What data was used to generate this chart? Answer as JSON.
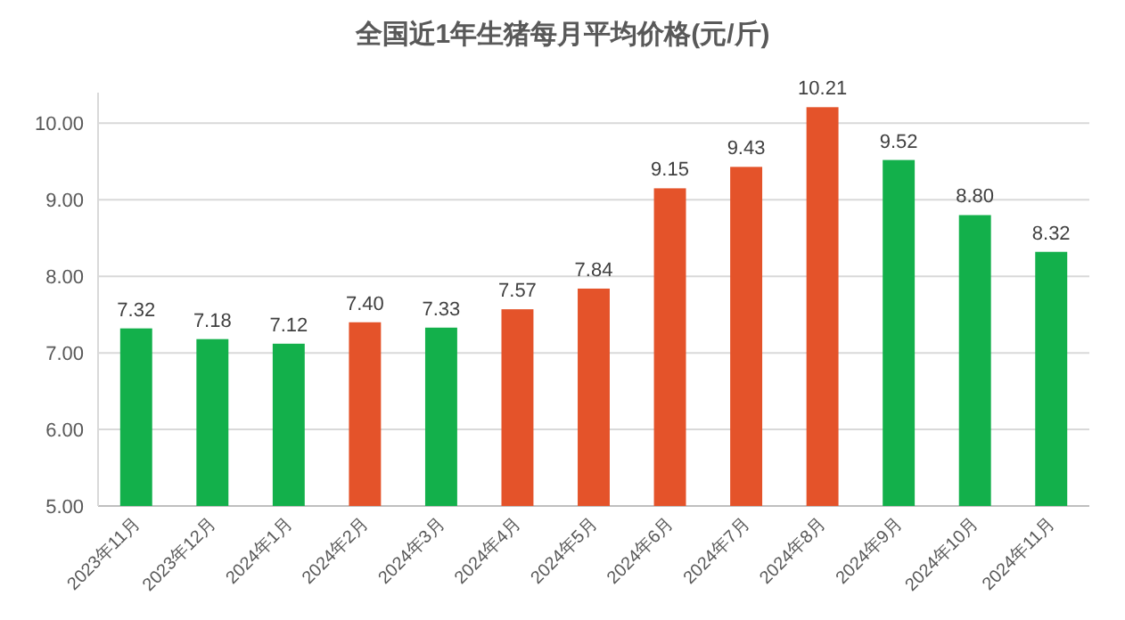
{
  "chart_data": {
    "type": "bar",
    "title": "全国近1年生猪每月平均价格(元/斤)",
    "categories": [
      "2023年11月",
      "2023年12月",
      "2024年1月",
      "2024年2月",
      "2024年3月",
      "2024年4月",
      "2024年5月",
      "2024年6月",
      "2024年7月",
      "2024年8月",
      "2024年9月",
      "2024年10月",
      "2024年11月"
    ],
    "values": [
      7.32,
      7.18,
      7.12,
      7.4,
      7.33,
      7.57,
      7.84,
      9.15,
      9.43,
      10.21,
      9.52,
      8.8,
      8.32
    ],
    "colors": [
      "#13b04b",
      "#13b04b",
      "#13b04b",
      "#e4532a",
      "#13b04b",
      "#e4532a",
      "#e4532a",
      "#e4532a",
      "#e4532a",
      "#e4532a",
      "#13b04b",
      "#13b04b",
      "#13b04b"
    ],
    "value_labels": [
      "7.32",
      "7.18",
      "7.12",
      "7.40",
      "7.33",
      "7.57",
      "7.84",
      "9.15",
      "9.43",
      "10.21",
      "9.52",
      "8.80",
      "8.32"
    ],
    "ylim": [
      5,
      10.4
    ],
    "yticks": [
      {
        "value": 5,
        "label": "5.00"
      },
      {
        "value": 6,
        "label": "6.00"
      },
      {
        "value": 7,
        "label": "7.00"
      },
      {
        "value": 8,
        "label": "8.00"
      },
      {
        "value": 9,
        "label": "9.00"
      },
      {
        "value": 10,
        "label": "10.00"
      }
    ],
    "grid": "y"
  }
}
